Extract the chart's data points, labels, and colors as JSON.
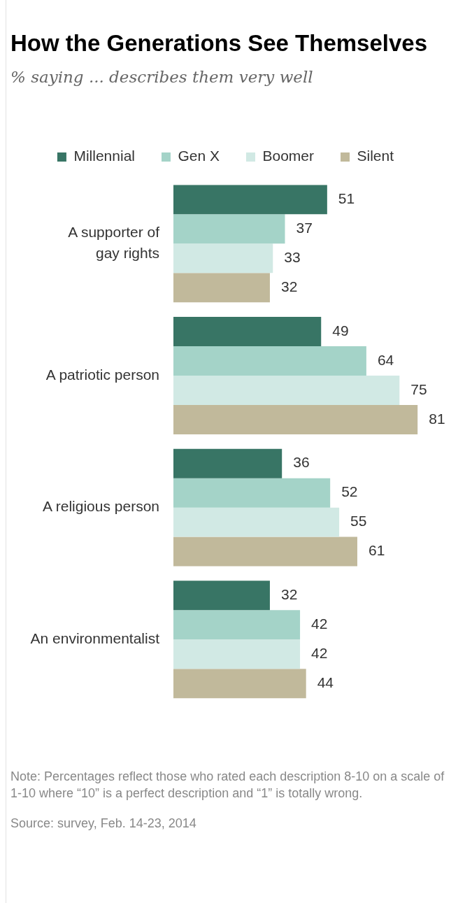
{
  "chart_data": {
    "type": "bar",
    "orientation": "horizontal",
    "title": "How the Generations See Themselves",
    "subtitle": "% saying ... describes them very well",
    "categories": [
      "A supporter of gay rights",
      "A patriotic person",
      "A religious person",
      "An environmentalist"
    ],
    "series": [
      {
        "name": "Millennial",
        "color": "#387565",
        "values": [
          51,
          49,
          36,
          32
        ]
      },
      {
        "name": "Gen X",
        "color": "#a4d3c8",
        "values": [
          37,
          64,
          52,
          42
        ]
      },
      {
        "name": "Boomer",
        "color": "#d1e9e4",
        "values": [
          33,
          75,
          55,
          42
        ]
      },
      {
        "name": "Silent",
        "color": "#c1b99b",
        "values": [
          32,
          81,
          61,
          44
        ]
      }
    ],
    "data_labels": true,
    "legend": "top",
    "grid": false,
    "tick_labels": "y",
    "annotations": [
      "Note: Percentages reflect those who rated each description 8-10 on a scale of 1-10 where “10” is a perfect description and “1” is totally wrong.",
      "Source: survey, Feb. 14-23, 2014"
    ]
  }
}
